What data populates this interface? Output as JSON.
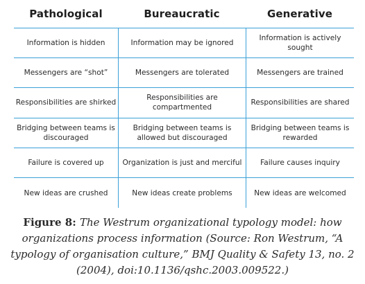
{
  "table": {
    "headers": [
      "Pathological",
      "Bureaucratic",
      "Generative"
    ],
    "rows": [
      [
        "Information is hidden",
        "Information may be ignored",
        "Information is actively sought"
      ],
      [
        "Messengers are “shot”",
        "Messengers are tolerated",
        "Messengers are trained"
      ],
      [
        "Responsibilities are shirked",
        "Responsibilities are compartmented",
        "Responsibilities are shared"
      ],
      [
        "Bridging between teams is discouraged",
        "Bridging between teams is allowed but discouraged",
        "Bridging between teams is rewarded"
      ],
      [
        "Failure is covered up",
        "Organization is just and merciful",
        "Failure causes inquiry"
      ],
      [
        "New ideas are crushed",
        "New ideas create problems",
        "New ideas are welcomed"
      ]
    ],
    "border_color": "#3aa0d8"
  },
  "caption": {
    "label": "Figure 8:",
    "text": "The Westrum organizational typology model: how organizations process information (Source: Ron Westrum, “A typology of organisation culture,” BMJ Quality & Safety 13, no. 2 (2004), doi:10.1136/qshc.2003.009522.)"
  }
}
